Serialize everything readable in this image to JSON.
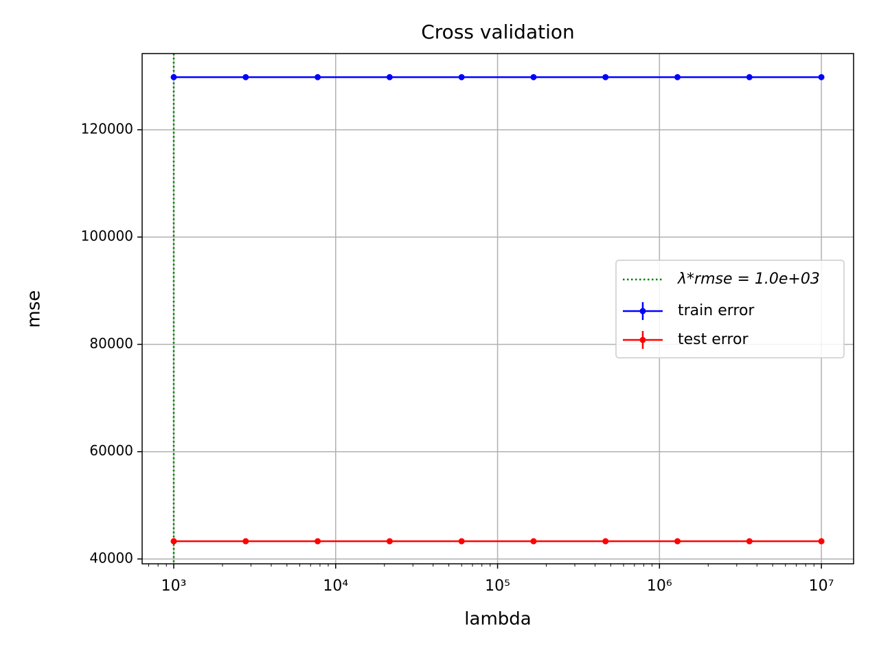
{
  "chart_data": {
    "type": "line",
    "title": "Cross validation",
    "x_label": "lambda",
    "y_label": "mse",
    "x": [
      1000,
      2782.559,
      7742.637,
      21544.347,
      59948.425,
      166810.054,
      464158.883,
      1291549.665,
      3593813.664,
      10000000
    ],
    "series": [
      {
        "name": "train error",
        "color": "#0000ff",
        "values": [
          129800,
          129800,
          129800,
          129800,
          129800,
          129800,
          129800,
          129800,
          129800,
          129800
        ]
      },
      {
        "name": "test error",
        "color": "#ff0000",
        "values": [
          43300,
          43300,
          43300,
          43300,
          43300,
          43300,
          43300,
          43300,
          43300,
          43300
        ]
      }
    ],
    "vline": {
      "x": 1000,
      "label": "λ*rmse = 1.0e+03",
      "color": "#008000"
    },
    "xscale": "log",
    "xlim": [
      638,
      15810000
    ],
    "xticks": [
      {
        "value": 1000,
        "label": "10³"
      },
      {
        "value": 10000,
        "label": "10⁴"
      },
      {
        "value": 100000,
        "label": "10⁵"
      },
      {
        "value": 1000000,
        "label": "10⁶"
      },
      {
        "value": 10000000,
        "label": "10⁷"
      }
    ],
    "ylim": [
      39100,
      134200
    ],
    "yticks": [
      40000,
      60000,
      80000,
      100000,
      120000
    ],
    "grid": true,
    "legend": "center right"
  }
}
